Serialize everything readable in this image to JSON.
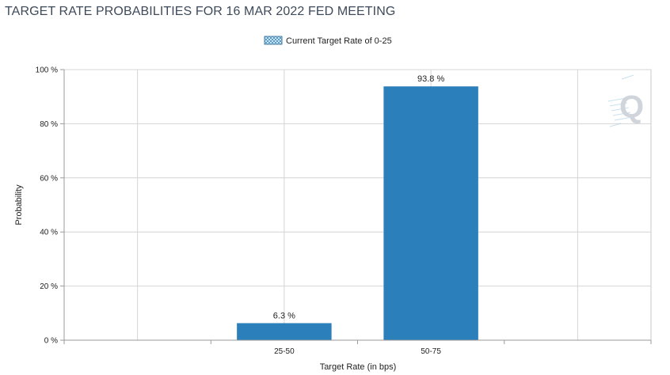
{
  "chart_data": {
    "type": "bar",
    "title": "TARGET RATE PROBABILITIES FOR 16 MAR 2022 FED MEETING",
    "xlabel": "Target Rate (in bps)",
    "ylabel": "Probability",
    "categories": [
      "",
      "25-50",
      "50-75",
      ""
    ],
    "series": [
      {
        "name": "Current Target Rate of 0-25",
        "values": [
          null,
          6.3,
          93.8,
          null
        ],
        "data_labels": [
          "",
          "6.3 %",
          "93.8 %",
          ""
        ],
        "color": "#2b7fbb"
      }
    ],
    "ylim": [
      0,
      100
    ],
    "yticks": [
      0,
      20,
      40,
      60,
      80,
      100
    ],
    "ytick_labels": [
      "0 %",
      "20 %",
      "40 %",
      "60 %",
      "80 %",
      "100 %"
    ],
    "grid": true,
    "legend_position": "top-center"
  },
  "colors": {
    "bar": "#2b7fbb",
    "grid": "#d4d4d4",
    "axis": "#9a9a9a",
    "title": "#3e4a5a",
    "watermark": "#b8d6e6"
  },
  "watermark": {
    "icon": "q-logo-icon",
    "text": "Q"
  }
}
